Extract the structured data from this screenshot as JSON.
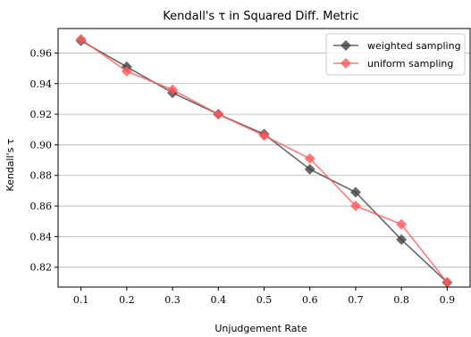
{
  "chart_data": {
    "type": "line",
    "title": "Kendall's τ in Squared Diff. Metric",
    "xlabel": "Unjudgement Rate",
    "ylabel": "Kendall's τ",
    "x": [
      0.1,
      0.2,
      0.3,
      0.4,
      0.5,
      0.6,
      0.7,
      0.8,
      0.9
    ],
    "x_tick_labels": [
      "0.1",
      "0.2",
      "0.3",
      "0.4",
      "0.5",
      "0.6",
      "0.7",
      "0.8",
      "0.9"
    ],
    "y_ticks": [
      0.82,
      0.84,
      0.86,
      0.88,
      0.9,
      0.92,
      0.94,
      0.96
    ],
    "y_tick_labels": [
      "0.82",
      "0.84",
      "0.86",
      "0.88",
      "0.90",
      "0.92",
      "0.94",
      "0.96"
    ],
    "xlim": [
      0.05,
      0.95
    ],
    "ylim": [
      0.807,
      0.976
    ],
    "grid": "horizontal",
    "legend_position": "top-right",
    "series": [
      {
        "name": "weighted sampling",
        "color": "#404040",
        "marker": "diamond",
        "values": [
          0.968,
          0.951,
          0.934,
          0.92,
          0.907,
          0.884,
          0.869,
          0.838,
          0.81
        ]
      },
      {
        "name": "uniform sampling",
        "color": "#ff5a5a",
        "marker": "diamond",
        "values": [
          0.969,
          0.948,
          0.936,
          0.92,
          0.906,
          0.891,
          0.86,
          0.848,
          0.81
        ]
      }
    ]
  }
}
